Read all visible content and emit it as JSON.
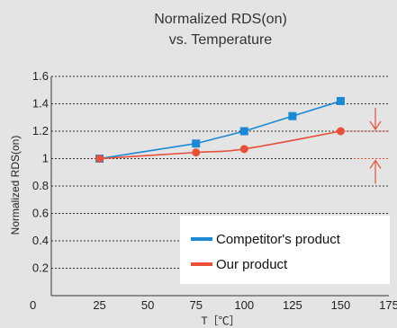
{
  "chart_data": {
    "type": "line",
    "title_lines": [
      "Normalized RDS(on)",
      "vs. Temperature"
    ],
    "xlabel": "T［℃］",
    "ylabel": "Normalized RDS(on)",
    "xlim": [
      0,
      175
    ],
    "ylim": [
      0,
      1.6
    ],
    "xticks": [
      0,
      25,
      50,
      75,
      100,
      125,
      150,
      175
    ],
    "yticks": [
      0.2,
      0.4,
      0.6,
      0.8,
      1,
      1.2,
      1.4,
      1.6
    ],
    "grid": "horizontal dotted",
    "legend_position": "bottom-right",
    "series": [
      {
        "name": "Competitor's product",
        "color": "#1a8ad4",
        "marker": "square",
        "x": [
          25,
          75,
          100,
          125,
          150
        ],
        "y": [
          1.0,
          1.11,
          1.2,
          1.31,
          1.42
        ]
      },
      {
        "name": "Our product",
        "color": "#e8503a",
        "marker": "circle",
        "x": [
          25,
          75,
          100,
          150
        ],
        "y": [
          1.0,
          1.045,
          1.07,
          1.2
        ]
      }
    ],
    "annotation": {
      "type": "difference-arrows",
      "color": "#e8503a",
      "x": 168,
      "levels": [
        1.2,
        1.0
      ]
    }
  }
}
